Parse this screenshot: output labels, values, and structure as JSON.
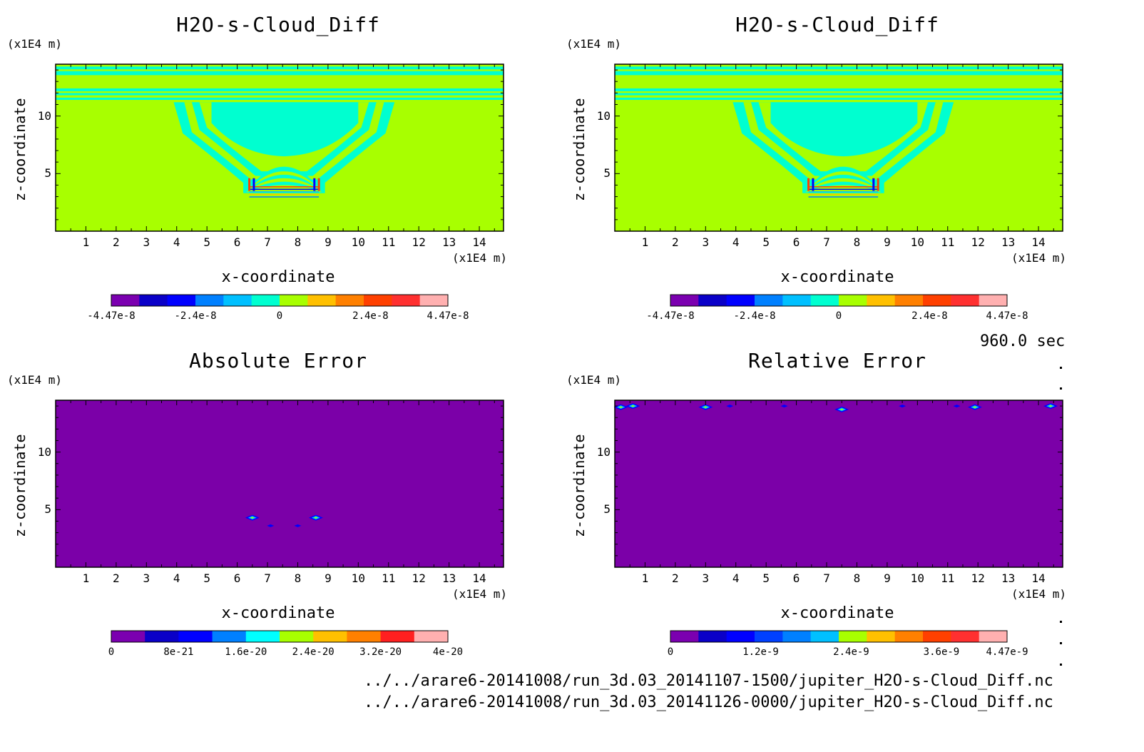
{
  "chart_data": [
    {
      "type": "heatmap",
      "title": "H2O-s-Cloud_Diff",
      "xlabel": "x-coordinate",
      "ylabel": "z-coordinate",
      "x_unit": "(x1E4 m)",
      "y_unit": "(x1E4 m)",
      "xticks": [
        "1",
        "2",
        "3",
        "4",
        "5",
        "6",
        "7",
        "8",
        "9",
        "10",
        "11",
        "12",
        "13",
        "14"
      ],
      "yticks": [
        "5",
        "10"
      ],
      "xlim": [
        0,
        14.8
      ],
      "ylim": [
        0,
        14.5
      ],
      "colorbar": {
        "colors": [
          "#7b00b0",
          "#0a00c8",
          "#0000ff",
          "#0080ff",
          "#00c0ff",
          "#00ffd0",
          "#a8ff00",
          "#ffc000",
          "#ff8000",
          "#ff4000",
          "#ff3030",
          "#ffb0b0"
        ],
        "labels": [
          "-4.47e-8",
          "-2.4e-8",
          "0",
          "2.4e-8",
          "4.47e-8"
        ],
        "label_positions": [
          0,
          0.25,
          0.5,
          0.77,
          1
        ]
      },
      "background_color": "#a8ff00",
      "feature_color": "#00ffd0"
    },
    {
      "type": "heatmap",
      "title": "H2O-s-Cloud_Diff",
      "xlabel": "x-coordinate",
      "ylabel": "z-coordinate",
      "x_unit": "(x1E4 m)",
      "y_unit": "(x1E4 m)",
      "xticks": [
        "1",
        "2",
        "3",
        "4",
        "5",
        "6",
        "7",
        "8",
        "9",
        "10",
        "11",
        "12",
        "13",
        "14"
      ],
      "yticks": [
        "5",
        "10"
      ],
      "xlim": [
        0,
        14.8
      ],
      "ylim": [
        0,
        14.5
      ],
      "colorbar": {
        "colors": [
          "#7b00b0",
          "#0a00c8",
          "#0000ff",
          "#0080ff",
          "#00c0ff",
          "#00ffd0",
          "#a8ff00",
          "#ffc000",
          "#ff8000",
          "#ff4000",
          "#ff3030",
          "#ffb0b0"
        ],
        "labels": [
          "-4.47e-8",
          "-2.4e-8",
          "0",
          "2.4e-8",
          "4.47e-8"
        ],
        "label_positions": [
          0,
          0.25,
          0.5,
          0.77,
          1
        ]
      },
      "background_color": "#a8ff00",
      "feature_color": "#00ffd0"
    },
    {
      "type": "heatmap",
      "title": "Absolute Error",
      "xlabel": "x-coordinate",
      "ylabel": "z-coordinate",
      "x_unit": "(x1E4 m)",
      "y_unit": "(x1E4 m)",
      "xticks": [
        "1",
        "2",
        "3",
        "4",
        "5",
        "6",
        "7",
        "8",
        "9",
        "10",
        "11",
        "12",
        "13",
        "14"
      ],
      "yticks": [
        "5",
        "10"
      ],
      "xlim": [
        0,
        14.8
      ],
      "ylim": [
        0,
        14.5
      ],
      "colorbar": {
        "colors": [
          "#7b00b0",
          "#0a00c8",
          "#0000ff",
          "#0080ff",
          "#00ffff",
          "#a8ff00",
          "#ffc000",
          "#ff8000",
          "#ff2020",
          "#ffb0b0"
        ],
        "labels": [
          "0",
          "8e-21",
          "1.6e-20",
          "2.4e-20",
          "3.2e-20",
          "4e-20"
        ],
        "label_positions": [
          0,
          0.2,
          0.4,
          0.6,
          0.8,
          1
        ]
      },
      "background_color": "#7b00a8",
      "hotspots": [
        {
          "x": 6.5,
          "z": 4.3,
          "kind": "diamond"
        },
        {
          "x": 8.6,
          "z": 4.3,
          "kind": "diamond"
        },
        {
          "x": 7.1,
          "z": 3.6,
          "kind": "dot"
        },
        {
          "x": 8.0,
          "z": 3.6,
          "kind": "dot"
        }
      ]
    },
    {
      "type": "heatmap",
      "title": "Relative Error",
      "xlabel": "x-coordinate",
      "ylabel": "z-coordinate",
      "x_unit": "(x1E4 m)",
      "y_unit": "(x1E4 m)",
      "xticks": [
        "1",
        "2",
        "3",
        "4",
        "5",
        "6",
        "7",
        "8",
        "9",
        "10",
        "11",
        "12",
        "13",
        "14"
      ],
      "yticks": [
        "5",
        "10"
      ],
      "xlim": [
        0,
        14.8
      ],
      "ylim": [
        0,
        14.5
      ],
      "colorbar": {
        "colors": [
          "#7b00b0",
          "#0a00c8",
          "#0000ff",
          "#0040ff",
          "#0080ff",
          "#00c0ff",
          "#a8ff00",
          "#ffc000",
          "#ff8000",
          "#ff4000",
          "#ff3030",
          "#ffb0b0"
        ],
        "labels": [
          "0",
          "1.2e-9",
          "2.4e-9",
          "3.6e-9",
          "4.47e-9"
        ],
        "label_positions": [
          0,
          0.268,
          0.537,
          0.805,
          1
        ]
      },
      "background_color": "#7b00a8",
      "hotspots": [
        {
          "x": 0.2,
          "z": 13.9,
          "kind": "diamond"
        },
        {
          "x": 0.6,
          "z": 14.0,
          "kind": "diamond"
        },
        {
          "x": 3.0,
          "z": 13.9,
          "kind": "diamond"
        },
        {
          "x": 3.8,
          "z": 14.0,
          "kind": "dot"
        },
        {
          "x": 5.6,
          "z": 14.0,
          "kind": "dot"
        },
        {
          "x": 7.5,
          "z": 13.7,
          "kind": "diamond"
        },
        {
          "x": 9.5,
          "z": 14.0,
          "kind": "dot"
        },
        {
          "x": 11.3,
          "z": 14.0,
          "kind": "dot"
        },
        {
          "x": 11.9,
          "z": 13.9,
          "kind": "diamond"
        },
        {
          "x": 14.4,
          "z": 14.0,
          "kind": "diamond"
        }
      ]
    }
  ],
  "timestamp": "960.0 sec",
  "footer": {
    "line1": "../../arare6-20141008/run_3d.03_20141107-1500/jupiter_H2O-s-Cloud_Diff.nc",
    "line2": "../../arare6-20141008/run_3d.03_20141126-0000/jupiter_H2O-s-Cloud_Diff.nc"
  }
}
